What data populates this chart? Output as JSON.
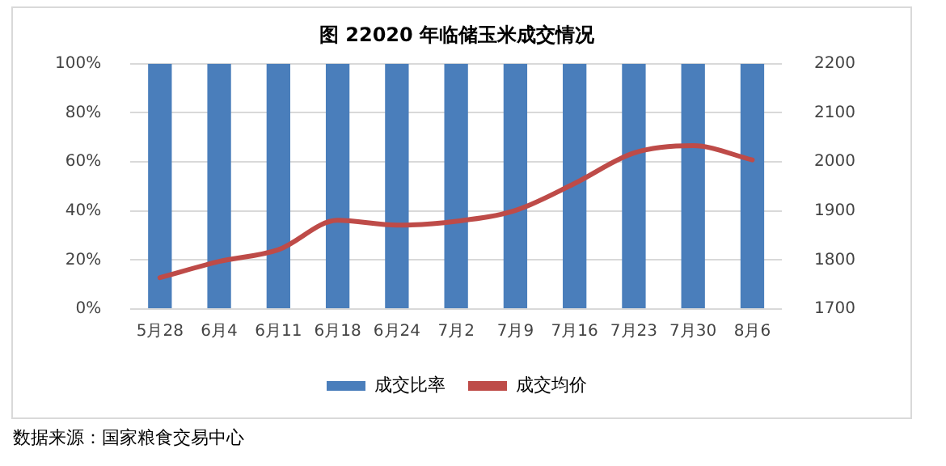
{
  "chart_data": {
    "type": "bar",
    "title": "图 22020 年临储玉米成交情况",
    "categories": [
      "5月28",
      "6月4",
      "6月11",
      "6月18",
      "6月24",
      "7月2",
      "7月9",
      "7月16",
      "7月23",
      "7月30",
      "8月6"
    ],
    "series": [
      {
        "name": "成交比率",
        "color": "#4a7ebb",
        "values": [
          100,
          100,
          100,
          100,
          100,
          100,
          100,
          100,
          100,
          100,
          100
        ]
      },
      {
        "name": "成交均价",
        "type": "line",
        "axis": "y2",
        "color": "#be4b48",
        "values": [
          1764,
          1797,
          1821,
          1881,
          1871,
          1879,
          1901,
          1956,
          2018,
          2033,
          2004
        ]
      }
    ],
    "ylim": [
      0,
      100
    ],
    "yticks": [
      {
        "value": 0,
        "label": "0%"
      },
      {
        "value": 20,
        "label": "20%"
      },
      {
        "value": 40,
        "label": "40%"
      },
      {
        "value": 60,
        "label": "60%"
      },
      {
        "value": 80,
        "label": "80%"
      },
      {
        "value": 100,
        "label": "100%"
      }
    ],
    "y2lim": [
      1700,
      2200
    ],
    "y2ticks": [
      1700,
      1800,
      1900,
      2000,
      2100,
      2200
    ],
    "grid": "y",
    "legend": "bottom",
    "marker": "none",
    "line_style": "solid",
    "annotations": [
      "数据来源：国家粮食交易中心"
    ]
  }
}
